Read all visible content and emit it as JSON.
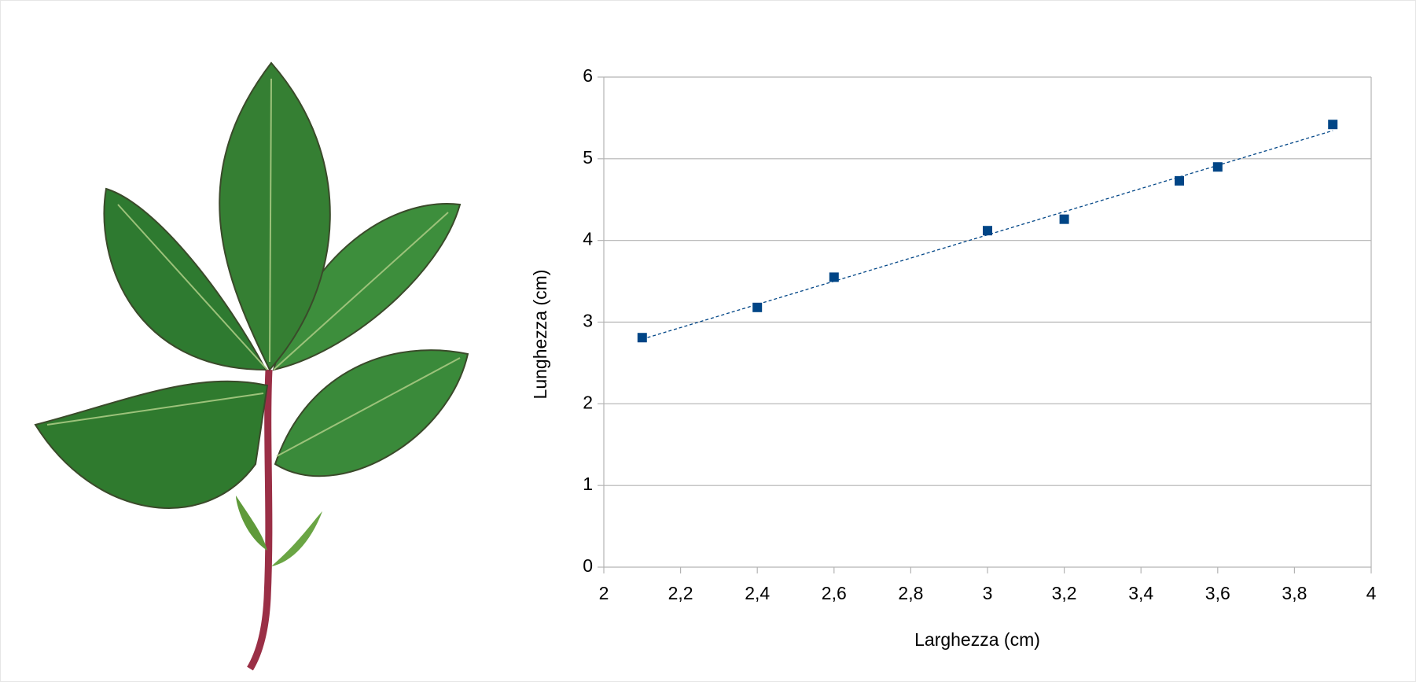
{
  "chart_data": {
    "type": "scatter",
    "x_label": "Larghezza (cm)",
    "y_label": "Lunghezza (cm)",
    "x": [
      2.1,
      2.4,
      2.6,
      3.0,
      3.2,
      3.5,
      3.6,
      3.9
    ],
    "series": [
      {
        "name": "Lunghezza (cm)",
        "color": "#004586",
        "values": [
          2.81,
          3.18,
          3.55,
          4.12,
          4.26,
          4.73,
          4.9,
          5.42
        ]
      }
    ],
    "trendline": "linear",
    "xlim": [
      2,
      4
    ],
    "xticks": [
      2,
      {
        "value": 2.2,
        "label": "2,2"
      },
      {
        "value": 2.4,
        "label": "2,4"
      },
      {
        "value": 2.6,
        "label": "2,6"
      },
      {
        "value": 2.8,
        "label": "2,8"
      },
      3,
      {
        "value": 3.2,
        "label": "3,2"
      },
      {
        "value": 3.4,
        "label": "3,4"
      },
      {
        "value": 3.6,
        "label": "3,6"
      },
      {
        "value": 3.8,
        "label": "3,8"
      },
      4
    ],
    "ylim": [
      0,
      6
    ],
    "yticks": [
      0,
      1,
      2,
      3,
      4,
      5,
      6
    ],
    "grid": true
  }
}
